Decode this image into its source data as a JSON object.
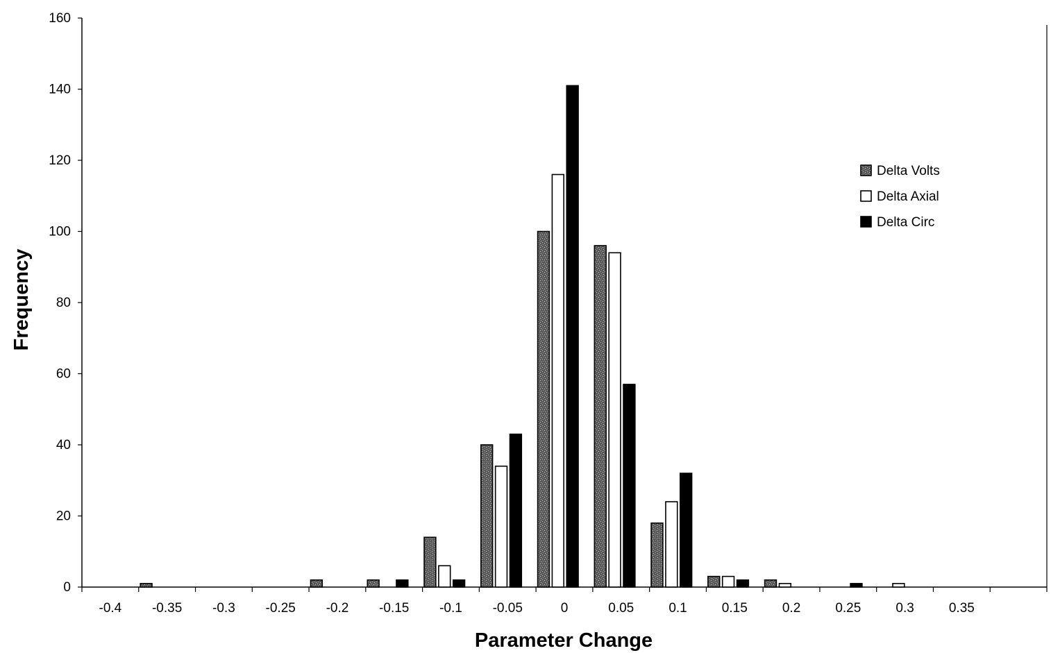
{
  "chart_data": {
    "type": "bar",
    "title": "",
    "xlabel": "Parameter Change",
    "ylabel": "Frequency",
    "ylim": [
      0,
      160
    ],
    "yticks": [
      "0",
      "20",
      "40",
      "60",
      "80",
      "100",
      "120",
      "140",
      "160"
    ],
    "categories": [
      "-0.4",
      "-0.35",
      "-0.3",
      "-0.25",
      "-0.2",
      "-0.15",
      "-0.1",
      "-0.05",
      "0",
      "0.05",
      "0.1",
      "0.15",
      "0.2",
      "0.25",
      "0.3",
      "0.35",
      ""
    ],
    "series": [
      {
        "name": "Delta Volts",
        "values": [
          0,
          1,
          0,
          0,
          2,
          2,
          14,
          40,
          100,
          96,
          18,
          3,
          2,
          0,
          0,
          0,
          0
        ]
      },
      {
        "name": "Delta Axial",
        "values": [
          0,
          0,
          0,
          0,
          0,
          0,
          6,
          34,
          116,
          94,
          24,
          3,
          1,
          0,
          1,
          0,
          0
        ]
      },
      {
        "name": "Delta Circ",
        "values": [
          0,
          0,
          0,
          0,
          0,
          2,
          2,
          43,
          141,
          57,
          32,
          2,
          0,
          1,
          0,
          0,
          0
        ]
      }
    ],
    "legend": {
      "position": "right",
      "items": [
        "Delta Volts",
        "Delta Axial",
        "Delta Circ"
      ]
    },
    "colors": {
      "Delta Volts": "#6e6e6e",
      "Delta Axial": "#ffffff",
      "Delta Circ": "#000000",
      "axis": "#000000"
    },
    "grid": false
  }
}
